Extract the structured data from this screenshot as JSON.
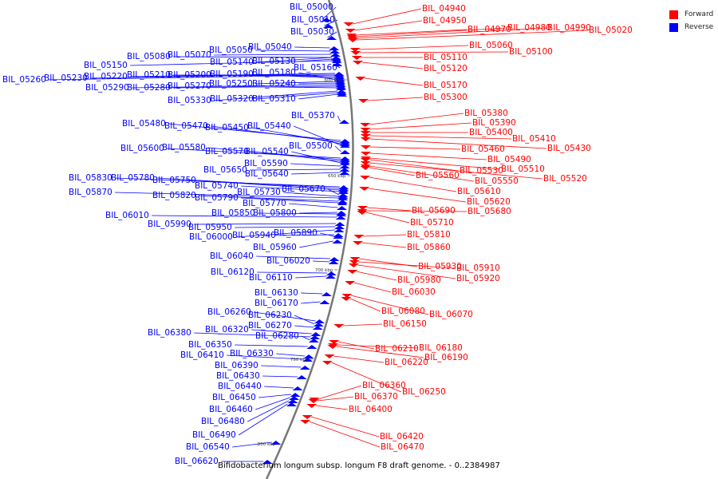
{
  "legend": {
    "forward_label": "Forward",
    "reverse_label": "Reverse",
    "forward_color": "#ff0000",
    "reverse_color": "#0000ff"
  },
  "caption": "Bifidobacterium longum subsp. longum F8 draft genome. - 0..2384987",
  "ticks": [
    "600 kbp",
    "650 kbp",
    "700 kbp",
    "750 kbp",
    "800 kbp"
  ],
  "reverse_genes": [
    "BIL_05000",
    "BIL_05010",
    "BIL_05030",
    "BIL_05040",
    "BIL_05050",
    "BIL_05070",
    "BIL_05080",
    "BIL_05140",
    "BIL_05130",
    "BIL_05150",
    "BIL_05160",
    "BIL_05260",
    "BIL_05230",
    "BIL_05220",
    "BIL_05210",
    "BIL_05200",
    "BIL_05190",
    "BIL_05180",
    "BIL_05250",
    "BIL_05240",
    "BIL_05290",
    "BIL_05280",
    "BIL_05270",
    "BIL_05330",
    "BIL_05320",
    "BIL_05310",
    "BIL_05370",
    "BIL_05480",
    "BIL_05470",
    "BIL_05450",
    "BIL_05440",
    "BIL_05500",
    "BIL_05600",
    "BIL_05580",
    "BIL_05570",
    "BIL_05540",
    "BIL_05590",
    "BIL_05650",
    "BIL_05640",
    "BIL_05830",
    "BIL_05780",
    "BIL_05750",
    "BIL_05740",
    "BIL_05670",
    "BIL_05730",
    "BIL_05870",
    "BIL_05820",
    "BIL_05790",
    "BIL_05770",
    "BIL_05800",
    "BIL_05850",
    "BIL_06010",
    "BIL_05990",
    "BIL_05950",
    "BIL_06000",
    "BIL_05940",
    "BIL_05890",
    "BIL_05960",
    "BIL_06040",
    "BIL_06020",
    "BIL_06120",
    "BIL_06110",
    "BIL_06130",
    "BIL_06170",
    "BIL_06260",
    "BIL_06230",
    "BIL_06270",
    "BIL_06380",
    "BIL_06320",
    "BIL_06280",
    "BIL_06350",
    "BIL_06330",
    "BIL_06410",
    "BIL_06390",
    "BIL_06430",
    "BIL_06440",
    "BIL_06450",
    "BIL_06460",
    "BIL_06480",
    "BIL_06490",
    "BIL_06540",
    "BIL_06620"
  ],
  "forward_genes": [
    "BIL_04940",
    "BIL_04950",
    "BIL_04970",
    "BIL_04980",
    "BIL_04990",
    "BIL_05020",
    "BIL_05060",
    "BIL_05100",
    "BIL_05110",
    "BIL_05120",
    "BIL_05170",
    "BIL_05300",
    "BIL_05380",
    "BIL_05390",
    "BIL_05400",
    "BIL_05410",
    "BIL_05430",
    "BIL_05460",
    "BIL_05490",
    "BIL_05510",
    "BIL_05530",
    "BIL_05520",
    "BIL_05550",
    "BIL_05560",
    "BIL_05610",
    "BIL_05620",
    "BIL_05690",
    "BIL_05680",
    "BIL_05710",
    "BIL_05810",
    "BIL_05860",
    "BIL_05930",
    "BIL_05910",
    "BIL_05920",
    "BIL_05980",
    "BIL_06030",
    "BIL_06070",
    "BIL_06080",
    "BIL_06150",
    "BIL_06210",
    "BIL_06180",
    "BIL_06190",
    "BIL_06220",
    "BIL_06250",
    "BIL_06360",
    "BIL_06370",
    "BIL_06400",
    "BIL_06420",
    "BIL_06470"
  ]
}
